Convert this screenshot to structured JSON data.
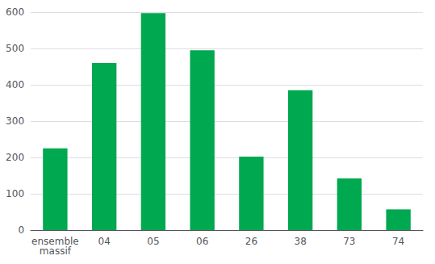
{
  "chart_data": {
    "type": "bar",
    "categories": [
      "ensemble\nmassif",
      "04",
      "05",
      "06",
      "26",
      "38",
      "73",
      "74"
    ],
    "values": [
      225,
      460,
      597,
      495,
      202,
      385,
      142,
      57
    ],
    "color": "#00A84F",
    "ylim": [
      0,
      600
    ],
    "yticks": [
      0,
      100,
      200,
      300,
      400,
      500,
      600
    ],
    "grid": true
  }
}
